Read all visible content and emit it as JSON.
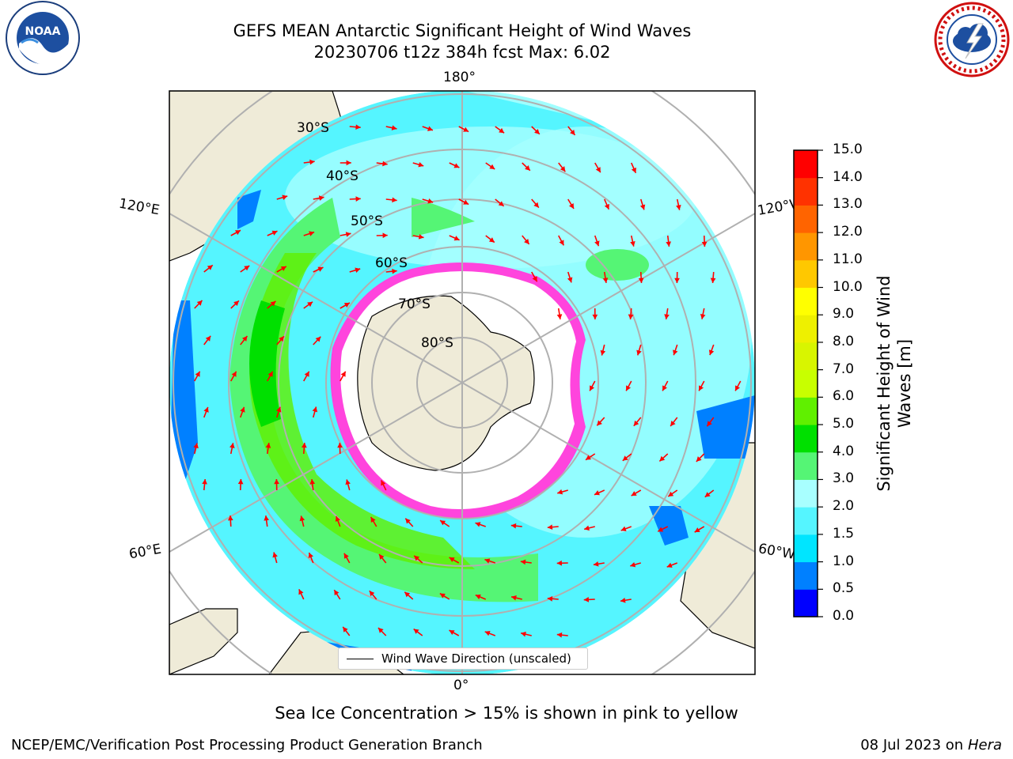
{
  "title": {
    "line1": "GEFS MEAN Antarctic Significant Height of Wind Waves",
    "line2": "20230706 t12z 384h fcst   Max: 6.02"
  },
  "map": {
    "projection": "south-polar-stereographic",
    "longitude_labels": [
      "180°",
      "120°E",
      "120°W",
      "60°E",
      "60°W",
      "0°"
    ],
    "latitude_labels": [
      "30°S",
      "40°S",
      "50°S",
      "60°S",
      "70°S",
      "80°S"
    ],
    "legend_text": "Wind Wave Direction (unscaled)",
    "colors": {
      "land": "#efebd8",
      "sea_ice": "#ffffff",
      "grid": "#b0b0b0",
      "arrow": "#ff0000"
    }
  },
  "colorbar": {
    "label": "Significant Height of Wind Waves [m]",
    "tick_labels": [
      "15.0",
      "14.0",
      "13.0",
      "12.0",
      "11.0",
      "10.0",
      "9.0",
      "8.0",
      "7.0",
      "6.0",
      "5.0",
      "4.0",
      "3.0",
      "2.0",
      "1.5",
      "1.0",
      "0.5",
      "0.0"
    ],
    "bins": [
      {
        "from": 0.0,
        "to": 0.5,
        "color": "#0000ff"
      },
      {
        "from": 0.5,
        "to": 1.0,
        "color": "#0080ff"
      },
      {
        "from": 1.0,
        "to": 1.5,
        "color": "#00e5ff"
      },
      {
        "from": 1.5,
        "to": 2.0,
        "color": "#55f5ff"
      },
      {
        "from": 2.0,
        "to": 3.0,
        "color": "#a8ffff"
      },
      {
        "from": 3.0,
        "to": 4.0,
        "color": "#55f575"
      },
      {
        "from": 4.0,
        "to": 5.0,
        "color": "#00e000"
      },
      {
        "from": 5.0,
        "to": 6.0,
        "color": "#60f000"
      },
      {
        "from": 6.0,
        "to": 7.0,
        "color": "#c8ff00"
      },
      {
        "from": 7.0,
        "to": 8.0,
        "color": "#d8f500"
      },
      {
        "from": 8.0,
        "to": 9.0,
        "color": "#eef000"
      },
      {
        "from": 9.0,
        "to": 10.0,
        "color": "#ffff00"
      },
      {
        "from": 10.0,
        "to": 11.0,
        "color": "#ffc800"
      },
      {
        "from": 11.0,
        "to": 12.0,
        "color": "#ff9600"
      },
      {
        "from": 12.0,
        "to": 13.0,
        "color": "#ff6400"
      },
      {
        "from": 13.0,
        "to": 14.0,
        "color": "#ff3200"
      },
      {
        "from": 14.0,
        "to": 15.0,
        "color": "#ff0000"
      }
    ]
  },
  "bottom_note": "Sea Ice Concentration > 15% is shown in pink to yellow",
  "footer": {
    "left": "NCEP/EMC/Verification Post Processing Product Generation Branch",
    "date": "08 Jul 2023 on ",
    "machine": "Hera"
  },
  "logos": {
    "noaa_icon": "noaa-logo",
    "noaa_text": "NOAA",
    "nws_icon": "national-weather-service-logo"
  }
}
